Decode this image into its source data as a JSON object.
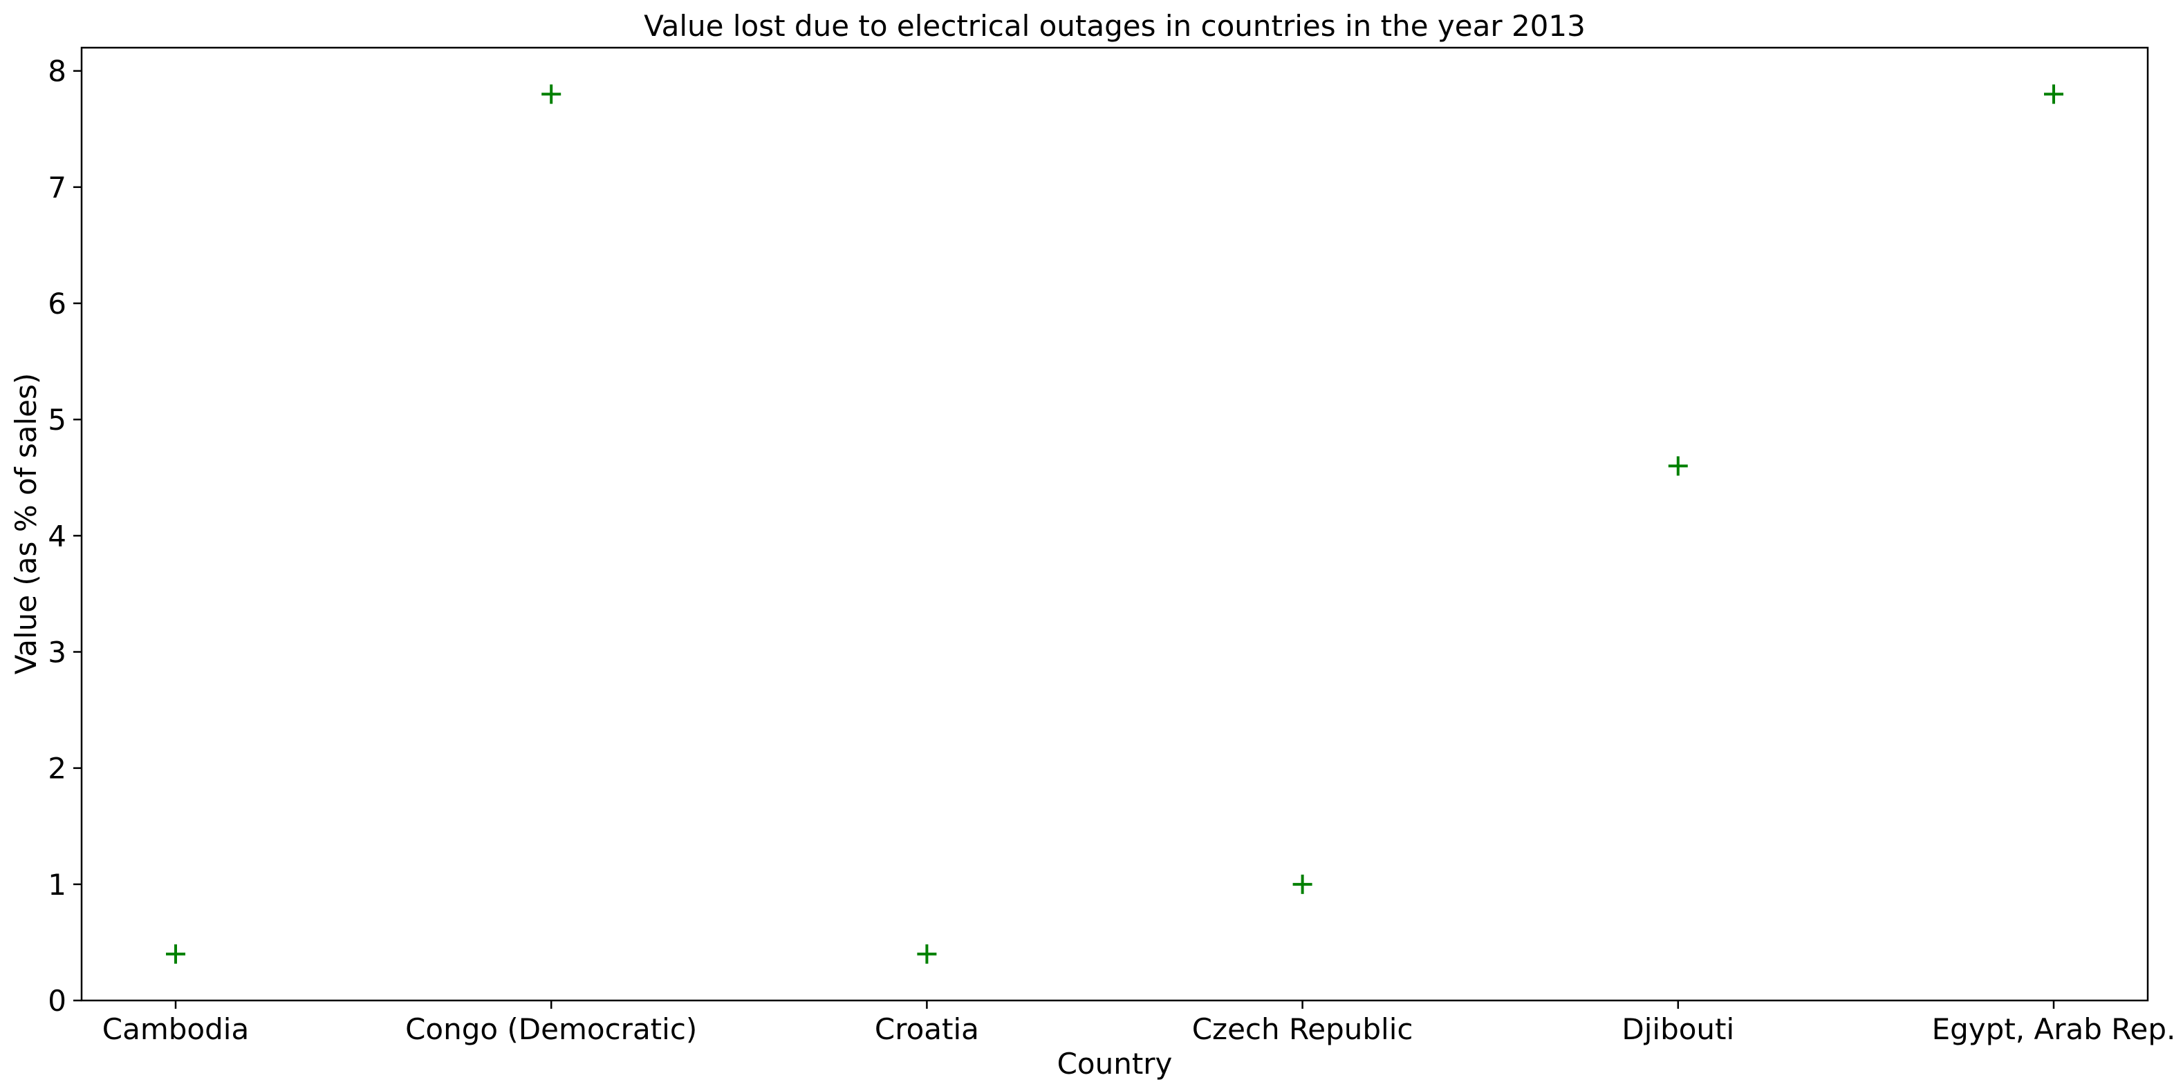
{
  "chart_data": {
    "type": "scatter",
    "title": "Value lost due to electrical outages in countries in the year 2013",
    "xlabel": "Country",
    "ylabel": "Value (as % of sales)",
    "categories": [
      "Cambodia",
      "Congo (Democratic)",
      "Croatia",
      "Czech Republic",
      "Djibouti",
      "Egypt, Arab Rep."
    ],
    "values": [
      0.4,
      7.8,
      0.4,
      1.0,
      4.6,
      7.8
    ],
    "ylim": [
      0,
      8.2
    ],
    "yticks": [
      0,
      1,
      2,
      3,
      4,
      5,
      6,
      7,
      8
    ],
    "marker": "plus",
    "marker_color": "#008000",
    "grid": false
  }
}
